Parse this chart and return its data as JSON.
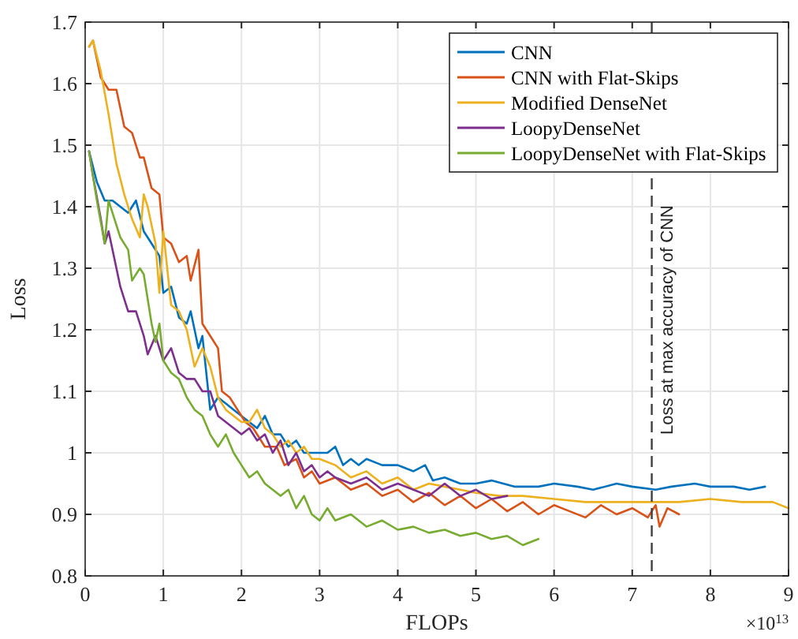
{
  "chart_data": {
    "type": "line",
    "xlabel": "FLOPs",
    "ylabel": "Loss",
    "xlim": [
      0,
      9
    ],
    "ylim": [
      0.8,
      1.7
    ],
    "xticks": [
      0,
      1,
      2,
      3,
      4,
      5,
      6,
      7,
      8,
      9
    ],
    "yticks": [
      0.8,
      0.9,
      1,
      1.1,
      1.2,
      1.3,
      1.4,
      1.5,
      1.6,
      1.7
    ],
    "grid": true,
    "legend": "top right",
    "line_style": "solid",
    "marker": "none",
    "annotations": [
      "×10$^{13}$"
    ],
    "ref_lines": [
      {
        "axis": "x",
        "value": 7.25,
        "label": "Loss at max accuracy of CNN",
        "color": "#404040",
        "line_style": "dashed"
      }
    ],
    "series": [
      {
        "name": "CNN",
        "color": "#0072bd",
        "x": [
          0.05,
          0.15,
          0.25,
          0.35,
          0.45,
          0.55,
          0.65,
          0.75,
          0.85,
          0.95,
          1.0,
          1.1,
          1.2,
          1.3,
          1.35,
          1.45,
          1.5,
          1.6,
          1.7,
          1.8,
          1.9,
          2.0,
          2.1,
          2.2,
          2.3,
          2.4,
          2.5,
          2.6,
          2.7,
          2.8,
          2.9,
          3.0,
          3.1,
          3.2,
          3.3,
          3.4,
          3.5,
          3.6,
          3.8,
          4.0,
          4.2,
          4.35,
          4.45,
          4.6,
          4.8,
          5.0,
          5.2,
          5.5,
          5.8,
          6.0,
          6.3,
          6.5,
          6.8,
          7.0,
          7.3,
          7.5,
          7.8,
          8.0,
          8.3,
          8.5,
          8.7
        ],
        "values": [
          1.49,
          1.44,
          1.41,
          1.41,
          1.4,
          1.39,
          1.41,
          1.36,
          1.34,
          1.32,
          1.26,
          1.27,
          1.22,
          1.21,
          1.23,
          1.17,
          1.19,
          1.07,
          1.09,
          1.08,
          1.07,
          1.06,
          1.05,
          1.04,
          1.06,
          1.03,
          1.03,
          1.01,
          1.02,
          1.0,
          1.0,
          1.0,
          1.0,
          1.01,
          0.98,
          0.99,
          0.98,
          0.99,
          0.98,
          0.98,
          0.97,
          0.98,
          0.955,
          0.96,
          0.95,
          0.95,
          0.955,
          0.945,
          0.945,
          0.95,
          0.945,
          0.94,
          0.95,
          0.945,
          0.94,
          0.945,
          0.95,
          0.945,
          0.945,
          0.94,
          0.945
        ]
      },
      {
        "name": "CNN with Flat-Skips",
        "color": "#d95319",
        "x": [
          0.05,
          0.1,
          0.2,
          0.3,
          0.4,
          0.5,
          0.6,
          0.7,
          0.75,
          0.85,
          0.95,
          1.0,
          1.1,
          1.2,
          1.3,
          1.35,
          1.45,
          1.5,
          1.6,
          1.7,
          1.75,
          1.85,
          1.95,
          2.05,
          2.15,
          2.3,
          2.45,
          2.55,
          2.7,
          2.8,
          2.9,
          3.0,
          3.2,
          3.4,
          3.6,
          3.8,
          4.0,
          4.2,
          4.4,
          4.6,
          4.8,
          5.0,
          5.2,
          5.4,
          5.6,
          5.8,
          6.0,
          6.2,
          6.4,
          6.6,
          6.8,
          7.0,
          7.2,
          7.3,
          7.35,
          7.45,
          7.6
        ],
        "values": [
          1.66,
          1.67,
          1.61,
          1.59,
          1.59,
          1.53,
          1.52,
          1.48,
          1.48,
          1.43,
          1.42,
          1.35,
          1.34,
          1.31,
          1.32,
          1.28,
          1.33,
          1.21,
          1.19,
          1.17,
          1.1,
          1.09,
          1.07,
          1.05,
          1.04,
          1.01,
          1.01,
          0.98,
          0.99,
          0.96,
          0.97,
          0.95,
          0.96,
          0.94,
          0.95,
          0.93,
          0.94,
          0.92,
          0.935,
          0.915,
          0.93,
          0.91,
          0.925,
          0.905,
          0.92,
          0.9,
          0.915,
          0.905,
          0.895,
          0.915,
          0.9,
          0.91,
          0.895,
          0.915,
          0.88,
          0.91,
          0.9
        ]
      },
      {
        "name": "Modified DenseNet",
        "color": "#edb120",
        "x": [
          0.05,
          0.1,
          0.2,
          0.3,
          0.4,
          0.5,
          0.6,
          0.7,
          0.75,
          0.8,
          0.9,
          0.95,
          1.0,
          1.05,
          1.1,
          1.2,
          1.3,
          1.4,
          1.5,
          1.6,
          1.7,
          1.8,
          1.9,
          2.0,
          2.1,
          2.2,
          2.3,
          2.4,
          2.5,
          2.6,
          2.7,
          2.8,
          2.9,
          3.0,
          3.2,
          3.4,
          3.6,
          3.8,
          4.0,
          4.2,
          4.4,
          4.6,
          4.8,
          5.0,
          5.3,
          5.6,
          6.0,
          6.4,
          6.8,
          7.2,
          7.6,
          8.0,
          8.4,
          8.8,
          9.0
        ],
        "values": [
          1.66,
          1.67,
          1.62,
          1.55,
          1.47,
          1.42,
          1.38,
          1.35,
          1.42,
          1.4,
          1.34,
          1.26,
          1.36,
          1.3,
          1.24,
          1.23,
          1.2,
          1.14,
          1.17,
          1.14,
          1.09,
          1.07,
          1.06,
          1.05,
          1.05,
          1.07,
          1.04,
          1.03,
          1.01,
          1.02,
          1.0,
          1.01,
          0.99,
          0.99,
          0.98,
          0.96,
          0.97,
          0.95,
          0.96,
          0.94,
          0.95,
          0.945,
          0.94,
          0.935,
          0.93,
          0.93,
          0.925,
          0.92,
          0.92,
          0.92,
          0.92,
          0.925,
          0.92,
          0.92,
          0.91
        ]
      },
      {
        "name": "LoopyDenseNet",
        "color": "#7e2f8e",
        "x": [
          0.05,
          0.1,
          0.2,
          0.25,
          0.3,
          0.45,
          0.55,
          0.65,
          0.75,
          0.8,
          0.9,
          1.0,
          1.1,
          1.2,
          1.3,
          1.4,
          1.5,
          1.6,
          1.7,
          1.8,
          1.9,
          2.0,
          2.1,
          2.2,
          2.3,
          2.4,
          2.5,
          2.6,
          2.7,
          2.8,
          2.9,
          3.0,
          3.1,
          3.2,
          3.4,
          3.6,
          3.8,
          4.0,
          4.2,
          4.4,
          4.6,
          4.8,
          5.0,
          5.2,
          5.4
        ],
        "values": [
          1.49,
          1.45,
          1.38,
          1.34,
          1.36,
          1.27,
          1.23,
          1.23,
          1.19,
          1.16,
          1.19,
          1.15,
          1.17,
          1.13,
          1.12,
          1.12,
          1.1,
          1.1,
          1.06,
          1.05,
          1.04,
          1.03,
          1.04,
          1.02,
          1.03,
          1.0,
          1.02,
          0.98,
          1.0,
          0.97,
          0.98,
          0.96,
          0.97,
          0.96,
          0.95,
          0.96,
          0.94,
          0.95,
          0.94,
          0.93,
          0.95,
          0.93,
          0.94,
          0.925,
          0.93
        ]
      },
      {
        "name": "LoopyDenseNet with Flat-Skips",
        "color": "#77ac30",
        "x": [
          0.05,
          0.1,
          0.15,
          0.25,
          0.3,
          0.35,
          0.45,
          0.55,
          0.6,
          0.7,
          0.75,
          0.85,
          0.9,
          0.95,
          1.0,
          1.1,
          1.2,
          1.3,
          1.4,
          1.5,
          1.6,
          1.7,
          1.8,
          1.9,
          2.0,
          2.1,
          2.2,
          2.3,
          2.4,
          2.5,
          2.6,
          2.7,
          2.8,
          2.9,
          3.0,
          3.1,
          3.2,
          3.4,
          3.6,
          3.8,
          4.0,
          4.2,
          4.4,
          4.6,
          4.8,
          5.0,
          5.2,
          5.4,
          5.6,
          5.8
        ],
        "values": [
          1.49,
          1.45,
          1.41,
          1.34,
          1.41,
          1.39,
          1.35,
          1.33,
          1.28,
          1.3,
          1.29,
          1.21,
          1.18,
          1.21,
          1.15,
          1.13,
          1.12,
          1.09,
          1.07,
          1.06,
          1.03,
          1.01,
          1.03,
          1.0,
          0.98,
          0.96,
          0.97,
          0.95,
          0.94,
          0.93,
          0.94,
          0.91,
          0.93,
          0.9,
          0.89,
          0.91,
          0.89,
          0.9,
          0.88,
          0.89,
          0.875,
          0.88,
          0.87,
          0.875,
          0.865,
          0.87,
          0.86,
          0.865,
          0.85,
          0.86
        ]
      }
    ]
  }
}
